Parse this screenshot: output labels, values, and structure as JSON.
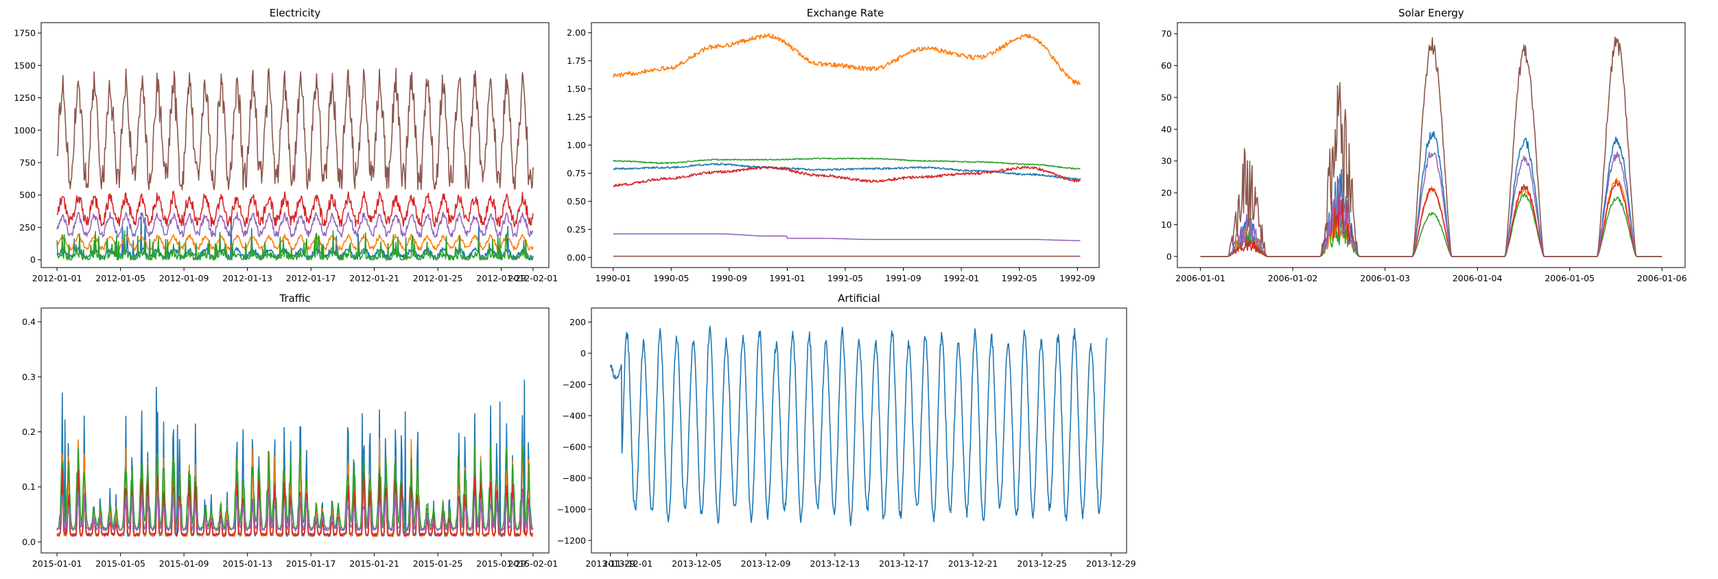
{
  "colors": [
    "#1f77b4",
    "#ff7f0e",
    "#2ca02c",
    "#d62728",
    "#9467bd",
    "#8c564b"
  ],
  "chart_data": [
    {
      "type": "line",
      "title": "Electricity",
      "ylim": [
        -60,
        1830
      ],
      "yticks": [
        0,
        250,
        500,
        750,
        1000,
        1250,
        1500,
        1750
      ],
      "ytick_labels": [
        "0",
        "250",
        "500",
        "750",
        "1000",
        "1250",
        "1500",
        "1750"
      ],
      "xlim": [
        0,
        32
      ],
      "xticks": [
        1,
        5,
        9,
        13,
        17,
        21,
        25,
        29,
        31
      ],
      "xtick_labels": [
        "2012-01-01",
        "2012-01-05",
        "2012-01-09",
        "2012-01-13",
        "2012-01-17",
        "2012-01-21",
        "2012-01-25",
        "2012-01-29",
        "2012-02-01"
      ],
      "gen": {
        "kind": "daily",
        "x0": 1,
        "x1": 31,
        "n": 720,
        "days": 30
      },
      "series": [
        {
          "color": 0,
          "base": 20,
          "amp": 70,
          "noise": 20,
          "spike": 0.02
        },
        {
          "color": 1,
          "base": 90,
          "amp": 110,
          "noise": 15,
          "spike": 0
        },
        {
          "color": 2,
          "base": 10,
          "amp": 40,
          "noise": 30,
          "spike": 0.12
        },
        {
          "color": 3,
          "base": 300,
          "amp": 220,
          "noise": 45,
          "spike": 0
        },
        {
          "color": 4,
          "base": 200,
          "amp": 170,
          "noise": 25,
          "spike": 0
        },
        {
          "color": 5,
          "base": 650,
          "amp": 850,
          "noise": 110,
          "spike": 0
        }
      ]
    },
    {
      "type": "line",
      "title": "Exchange Rate",
      "ylim": [
        -0.09,
        2.09
      ],
      "yticks": [
        0.0,
        0.25,
        0.5,
        0.75,
        1.0,
        1.25,
        1.5,
        1.75,
        2.0
      ],
      "ytick_labels": [
        "0.00",
        "0.25",
        "0.50",
        "0.75",
        "1.00",
        "1.25",
        "1.50",
        "1.75",
        "2.00"
      ],
      "xlim": [
        -1.5,
        33.5
      ],
      "xticks": [
        0,
        4,
        8,
        12,
        16,
        20,
        24,
        28,
        32
      ],
      "xtick_labels": [
        "1990-01",
        "1990-05",
        "1990-09",
        "1991-01",
        "1991-05",
        "1991-09",
        "1992-01",
        "1992-05",
        "1992-09"
      ],
      "gen": {
        "kind": "walk",
        "x0": 0,
        "x1": 32.2,
        "n": 720
      },
      "series": [
        {
          "color": 0,
          "anchors": [
            0.79,
            0.8,
            0.83,
            0.8,
            0.78,
            0.79,
            0.8,
            0.77,
            0.74,
            0.7
          ],
          "noise": 0.008
        },
        {
          "color": 1,
          "anchors": [
            1.62,
            1.68,
            1.88,
            1.97,
            1.72,
            1.68,
            1.86,
            1.78,
            1.97,
            1.55
          ],
          "noise": 0.02
        },
        {
          "color": 2,
          "anchors": [
            0.86,
            0.84,
            0.87,
            0.87,
            0.88,
            0.88,
            0.86,
            0.85,
            0.83,
            0.79
          ],
          "noise": 0.005
        },
        {
          "color": 3,
          "anchors": [
            0.64,
            0.7,
            0.76,
            0.8,
            0.73,
            0.68,
            0.72,
            0.75,
            0.8,
            0.68
          ],
          "noise": 0.012
        },
        {
          "color": 4,
          "anchors": [
            0.21,
            0.21,
            0.21,
            0.19,
            0.19,
            0.18,
            0.18,
            0.18,
            0.18,
            0.17
          ],
          "noise": 0.0
        },
        {
          "color": 5,
          "anchors": [
            0.01,
            0.01,
            0.01,
            0.01,
            0.01,
            0.01,
            0.01,
            0.01,
            0.01,
            0.01
          ],
          "noise": 0.0
        }
      ]
    },
    {
      "type": "line",
      "title": "Solar Energy",
      "ylim": [
        -3.5,
        73.5
      ],
      "yticks": [
        0,
        10,
        20,
        30,
        40,
        50,
        60,
        70
      ],
      "ytick_labels": [
        "0",
        "10",
        "20",
        "30",
        "40",
        "50",
        "60",
        "70"
      ],
      "xlim": [
        -0.25,
        5.25
      ],
      "xticks": [
        0,
        1,
        2,
        3,
        4,
        5
      ],
      "xtick_labels": [
        "2006-01-01",
        "2006-01-02",
        "2006-01-03",
        "2006-01-04",
        "2006-01-05",
        "2006-01-06"
      ],
      "gen": {
        "kind": "solar",
        "x0": 0,
        "x1": 5,
        "n": 600
      },
      "day_peaks": [
        [
          12,
          10,
          8,
          6,
          14,
          36
        ],
        [
          28,
          18,
          14,
          20,
          26,
          56
        ],
        [
          40,
          22,
          14,
          22,
          34,
          69
        ],
        [
          38,
          22,
          20,
          23,
          32,
          67
        ],
        [
          38,
          25,
          19,
          24,
          33,
          70
        ]
      ],
      "series": [
        {
          "color": 0
        },
        {
          "color": 1
        },
        {
          "color": 2
        },
        {
          "color": 3
        },
        {
          "color": 4
        },
        {
          "color": 5
        }
      ]
    },
    {
      "type": "line",
      "title": "Traffic",
      "ylim": [
        -0.02,
        0.425
      ],
      "yticks": [
        0.0,
        0.1,
        0.2,
        0.3,
        0.4
      ],
      "ytick_labels": [
        "0.0",
        "0.1",
        "0.2",
        "0.3",
        "0.4"
      ],
      "xlim": [
        0,
        32
      ],
      "xticks": [
        1,
        5,
        9,
        13,
        17,
        21,
        25,
        29,
        31
      ],
      "xtick_labels": [
        "2015-01-01",
        "2015-01-05",
        "2015-01-09",
        "2015-01-13",
        "2015-01-17",
        "2015-01-21",
        "2015-01-25",
        "2015-01-29",
        "2015-02-01"
      ],
      "gen": {
        "kind": "traffic",
        "x0": 1,
        "x1": 31,
        "n": 720,
        "days": 30
      },
      "series": [
        {
          "color": 0,
          "base": 0.01,
          "peak": 0.22,
          "width": 0.05
        },
        {
          "color": 1,
          "base": 0.01,
          "peak": 0.15,
          "width": 0.06
        },
        {
          "color": 2,
          "base": 0.02,
          "peak": 0.13,
          "width": 0.12
        },
        {
          "color": 3,
          "base": 0.01,
          "peak": 0.1,
          "width": 0.07
        },
        {
          "color": 4,
          "base": 0.02,
          "peak": 0.06,
          "width": 0.1
        }
      ]
    },
    {
      "type": "line",
      "title": "Artificial",
      "ylim": [
        -1280,
        290
      ],
      "yticks": [
        200,
        0,
        -200,
        -400,
        -600,
        -800,
        -1000,
        -1200
      ],
      "ytick_labels": [
        "200",
        "0",
        "−200",
        "−400",
        "−600",
        "−800",
        "−1000",
        "−1200"
      ],
      "xlim": [
        -1.1,
        29.9
      ],
      "xticks": [
        0,
        1,
        5,
        9,
        13,
        17,
        21,
        25,
        29
      ],
      "xtick_labels": [
        "2013-11-29",
        "2013-12-01",
        "2013-12-05",
        "2013-12-09",
        "2013-12-13",
        "2013-12-17",
        "2013-12-21",
        "2013-12-25",
        "2013-12-29"
      ],
      "gen": {
        "kind": "artificial",
        "x0": 0,
        "x1": 28.8,
        "n": 860,
        "periods": 30
      },
      "series": [
        {
          "color": 0,
          "max": 140,
          "min": -1080
        }
      ]
    }
  ]
}
